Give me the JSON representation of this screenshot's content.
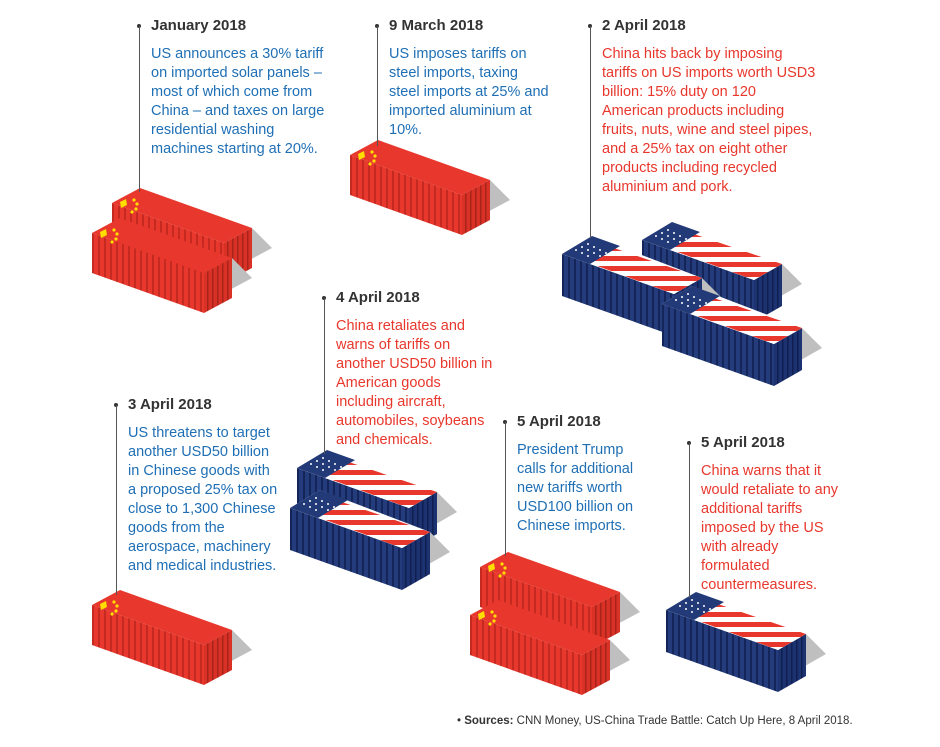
{
  "events": [
    {
      "date": "January 2018",
      "text": "US announces a 30% tariff on imported solar panels – most of which come from China – and taxes on large residential washing machines starting at 20%.",
      "actor": "US"
    },
    {
      "date": "9 March 2018",
      "text": "US imposes tariffs on steel imports, taxing steel imports at 25% and imported aluminium at 10%.",
      "actor": "US"
    },
    {
      "date": "2 April 2018",
      "text": "China hits back by imposing tariffs on US imports worth USD3 billion: 15% duty on 120 American products including fruits, nuts, wine and steel pipes, and a 25% tax on eight other products including recycled aluminium and pork.",
      "actor": "China"
    },
    {
      "date": "4 April 2018",
      "text": "China retaliates and warns of tariffs on another USD50 billion in American goods including aircraft, automobiles, soybeans and chemicals.",
      "actor": "China"
    },
    {
      "date": "3 April 2018",
      "text": "US threatens to target another USD50 billion in Chinese goods with a proposed 25% tax on close to 1,300 Chinese goods from the aerospace, machinery and medical industries.",
      "actor": "US"
    },
    {
      "date": "5 April 2018",
      "text": "President Trump calls for additional new tariffs worth USD100 billion on Chinese imports.",
      "actor": "US"
    },
    {
      "date": "5 April 2018",
      "text": "China warns that it would retaliate to any additional tariffs imposed by the US with already formulated countermeasures.",
      "actor": "China"
    }
  ],
  "source": {
    "label": "Sources:",
    "text": "CNN Money, US-China Trade Battle: Catch Up Here, 8 April 2018."
  },
  "colors": {
    "us_text": "#1f6fb5",
    "china_text": "#e8372c",
    "container_red": "#e8372c",
    "container_blue": "#233a78",
    "shadow": "#bbbbbb"
  }
}
